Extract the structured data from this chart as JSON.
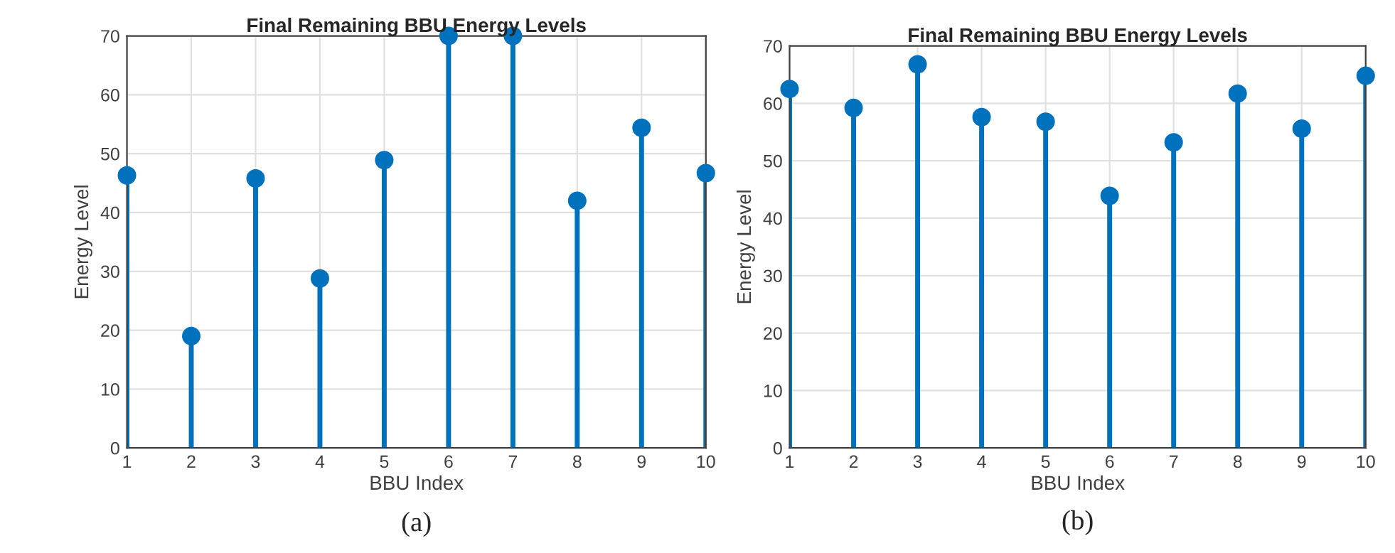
{
  "chart_data": [
    {
      "type": "lollipop",
      "title": "Final Remaining BBU Energy Levels",
      "xlabel": "BBU Index",
      "ylabel": "Energy Level",
      "x": [
        1,
        2,
        3,
        4,
        5,
        6,
        7,
        8,
        9,
        10
      ],
      "series": [
        {
          "color": "#0072bd",
          "values": [
            46.3,
            19.0,
            45.8,
            28.8,
            48.9,
            70,
            70,
            42.0,
            54.4,
            46.7
          ]
        }
      ],
      "xlim": [
        1,
        10
      ],
      "xticks": [
        1,
        2,
        3,
        4,
        5,
        6,
        7,
        8,
        9,
        10
      ],
      "ylim": [
        0,
        70
      ],
      "yticks": [
        0,
        10,
        20,
        30,
        40,
        50,
        60,
        70
      ],
      "grid": true,
      "marker": "circle",
      "annotations": [
        "(a)"
      ]
    },
    {
      "type": "lollipop",
      "title": "Final Remaining BBU Energy Levels",
      "xlabel": "BBU Index",
      "ylabel": "Energy Level",
      "x": [
        1,
        2,
        3,
        4,
        5,
        6,
        7,
        8,
        9,
        10
      ],
      "series": [
        {
          "color": "#0072bd",
          "values": [
            62.5,
            59.2,
            66.8,
            57.6,
            56.8,
            43.9,
            53.2,
            61.7,
            55.6,
            64.8
          ]
        }
      ],
      "xlim": [
        1,
        10
      ],
      "xticks": [
        1,
        2,
        3,
        4,
        5,
        6,
        7,
        8,
        9,
        10
      ],
      "ylim": [
        0,
        70
      ],
      "yticks": [
        0,
        10,
        20,
        30,
        40,
        50,
        60,
        70
      ],
      "grid": true,
      "marker": "circle",
      "annotations": [
        "(b)"
      ]
    }
  ]
}
